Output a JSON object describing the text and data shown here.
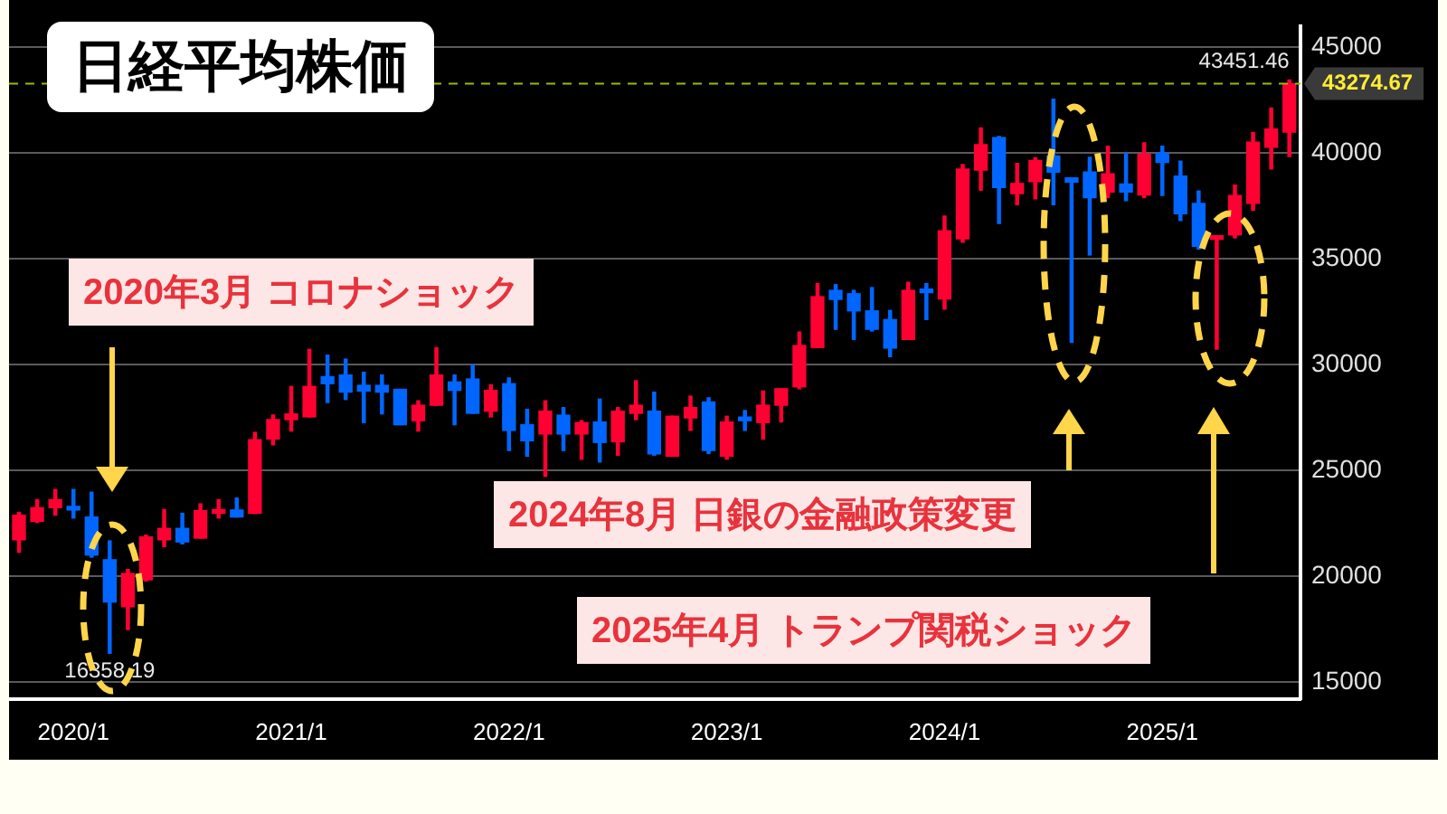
{
  "chart_data": {
    "type": "candlestick",
    "title": "日経平均株価",
    "x": [
      "2019-10",
      "2019-11",
      "2019-12",
      "2020-01",
      "2020-02",
      "2020-03",
      "2020-04",
      "2020-05",
      "2020-06",
      "2020-07",
      "2020-08",
      "2020-09",
      "2020-10",
      "2020-11",
      "2020-12",
      "2021-01",
      "2021-02",
      "2021-03",
      "2021-04",
      "2021-05",
      "2021-06",
      "2021-07",
      "2021-08",
      "2021-09",
      "2021-10",
      "2021-11",
      "2021-12",
      "2022-01",
      "2022-02",
      "2022-03",
      "2022-04",
      "2022-05",
      "2022-06",
      "2022-07",
      "2022-08",
      "2022-09",
      "2022-10",
      "2022-11",
      "2022-12",
      "2023-01",
      "2023-02",
      "2023-03",
      "2023-04",
      "2023-05",
      "2023-06",
      "2023-07",
      "2023-08",
      "2023-09",
      "2023-10",
      "2023-11",
      "2023-12",
      "2024-01",
      "2024-02",
      "2024-03",
      "2024-04",
      "2024-05",
      "2024-06",
      "2024-07",
      "2024-08",
      "2024-09",
      "2024-10",
      "2024-11",
      "2024-12",
      "2025-01",
      "2025-02",
      "2025-03",
      "2025-04",
      "2025-05",
      "2025-06",
      "2025-07",
      "2025-08"
    ],
    "ohlc": [
      [
        21720,
        23020,
        21130,
        22880
      ],
      [
        22590,
        23620,
        22540,
        23240
      ],
      [
        23240,
        24100,
        22885,
        23620
      ],
      [
        23290,
        24100,
        22750,
        23130
      ],
      [
        22800,
        23970,
        20900,
        21000
      ],
      [
        20780,
        21670,
        16358.19,
        18780
      ],
      [
        18560,
        20320,
        17480,
        20130
      ],
      [
        19830,
        21940,
        19780,
        21860
      ],
      [
        21720,
        23150,
        21400,
        22260
      ],
      [
        22260,
        22970,
        21530,
        21620
      ],
      [
        21800,
        23420,
        21800,
        23100
      ],
      [
        22970,
        23620,
        22750,
        23150
      ],
      [
        23130,
        23700,
        22800,
        22800
      ],
      [
        22970,
        26800,
        22970,
        26450
      ],
      [
        26480,
        27620,
        26210,
        27400
      ],
      [
        27400,
        28970,
        26860,
        27670
      ],
      [
        27530,
        30720,
        27530,
        28970
      ],
      [
        29430,
        30450,
        28210,
        29100
      ],
      [
        29510,
        30260,
        28350,
        28700
      ],
      [
        29020,
        29640,
        27260,
        28750
      ],
      [
        29020,
        29510,
        27670,
        28700
      ],
      [
        28830,
        28830,
        27160,
        27160
      ],
      [
        27350,
        28290,
        26860,
        28080
      ],
      [
        28080,
        30800,
        28080,
        29510
      ],
      [
        29180,
        29510,
        27160,
        28780
      ],
      [
        29320,
        29970,
        27700,
        27700
      ],
      [
        27800,
        29050,
        27530,
        28780
      ],
      [
        29100,
        29370,
        25940,
        26890
      ],
      [
        27160,
        27890,
        25670,
        26400
      ],
      [
        26720,
        28290,
        24720,
        27800
      ],
      [
        27610,
        27970,
        25940,
        26720
      ],
      [
        26720,
        27350,
        25530,
        27260
      ],
      [
        27290,
        28370,
        25400,
        26320
      ],
      [
        26350,
        27970,
        25720,
        27800
      ],
      [
        27700,
        29240,
        27400,
        28080
      ],
      [
        27800,
        28700,
        25720,
        25780
      ],
      [
        25670,
        27560,
        25670,
        27560
      ],
      [
        27480,
        28510,
        26890,
        27970
      ],
      [
        28240,
        28430,
        25800,
        25940
      ],
      [
        25670,
        27560,
        25530,
        27290
      ],
      [
        27430,
        27830,
        26890,
        27350
      ],
      [
        27260,
        28750,
        26480,
        28080
      ],
      [
        28080,
        28860,
        27290,
        28860
      ],
      [
        28950,
        31540,
        28860,
        30900
      ],
      [
        30810,
        33830,
        30810,
        33210
      ],
      [
        33510,
        33780,
        31670,
        33080
      ],
      [
        33350,
        33510,
        31190,
        32540
      ],
      [
        32540,
        33640,
        31590,
        31670
      ],
      [
        32130,
        32560,
        30375,
        30780
      ],
      [
        31190,
        33890,
        31190,
        33510
      ],
      [
        33560,
        33830,
        32130,
        33400
      ],
      [
        33100,
        37020,
        32620,
        36320
      ],
      [
        35940,
        39460,
        35780,
        39240
      ],
      [
        39190,
        41190,
        38240,
        40400
      ],
      [
        40730,
        40780,
        36670,
        38370
      ],
      [
        38080,
        39510,
        37560,
        38560
      ],
      [
        38650,
        39780,
        37830,
        39650
      ],
      [
        39860,
        42540,
        37560,
        39100
      ],
      [
        38830,
        38830,
        31050,
        38620
      ],
      [
        39100,
        39800,
        35180,
        37890
      ],
      [
        38160,
        40320,
        37890,
        39020
      ],
      [
        38540,
        39990,
        37750,
        38160
      ],
      [
        38020,
        40480,
        37890,
        39940
      ],
      [
        39990,
        40320,
        37990,
        39560
      ],
      [
        38910,
        39620,
        36810,
        37130
      ],
      [
        37620,
        38210,
        35460,
        35590
      ],
      [
        35920,
        36050,
        30730,
        36050
      ],
      [
        36130,
        38480,
        35990,
        37990
      ],
      [
        37620,
        40970,
        37290,
        40510
      ],
      [
        40270,
        42130,
        39240,
        41130
      ],
      [
        40990,
        43451.46,
        39830,
        43274.67
      ]
    ],
    "colors": [
      "#ff0033",
      "#ff0033",
      "#ff0033",
      "#0066ff",
      "#0066ff",
      "#0066ff",
      "#ff0033",
      "#ff0033",
      "#ff0033",
      "#0066ff",
      "#ff0033",
      "#ff0033",
      "#0066ff",
      "#ff0033",
      "#ff0033",
      "#ff0033",
      "#ff0033",
      "#0066ff",
      "#0066ff",
      "#0066ff",
      "#0066ff",
      "#0066ff",
      "#ff0033",
      "#ff0033",
      "#0066ff",
      "#0066ff",
      "#ff0033",
      "#0066ff",
      "#0066ff",
      "#ff0033",
      "#0066ff",
      "#ff0033",
      "#0066ff",
      "#ff0033",
      "#ff0033",
      "#0066ff",
      "#ff0033",
      "#ff0033",
      "#0066ff",
      "#ff0033",
      "#0066ff",
      "#ff0033",
      "#ff0033",
      "#ff0033",
      "#ff0033",
      "#0066ff",
      "#0066ff",
      "#0066ff",
      "#0066ff",
      "#ff0033",
      "#0066ff",
      "#ff0033",
      "#ff0033",
      "#ff0033",
      "#0066ff",
      "#ff0033",
      "#ff0033",
      "#0066ff",
      "#0066ff",
      "#0066ff",
      "#ff0033",
      "#0066ff",
      "#ff0033",
      "#0066ff",
      "#0066ff",
      "#0066ff",
      "#ff0033",
      "#ff0033",
      "#ff0033",
      "#ff0033",
      "#ff0033"
    ],
    "xlim": [
      "2019-09-15",
      "2025-08-20"
    ],
    "xticks": [
      {
        "value": "2020-01",
        "label": "2020/1"
      },
      {
        "value": "2021-01",
        "label": "2021/1"
      },
      {
        "value": "2022-01",
        "label": "2022/1"
      },
      {
        "value": "2023-01",
        "label": "2023/1"
      },
      {
        "value": "2024-01",
        "label": "2024/1"
      },
      {
        "value": "2025-01",
        "label": "2025/1"
      }
    ],
    "ylim": [
      14200,
      46000
    ],
    "yticks": [
      15000,
      20000,
      25000,
      30000,
      35000,
      40000,
      45000
    ],
    "grid": "y",
    "ref_lines": [
      {
        "axis": "y",
        "value": 43274.67,
        "label": "43274.67",
        "color": "#99bb00",
        "line_style": "dashed"
      }
    ],
    "annotations": [
      "2020年3月 コロナショック",
      "2024年8月 日銀の金融政策変更",
      "2025年4月 トランプ関税ショック",
      {
        "text": "16358.19",
        "x": "2020-03",
        "y": 16358.19
      },
      {
        "text": "43451.46",
        "x": "2025-08",
        "y": 43451.46
      }
    ]
  }
}
